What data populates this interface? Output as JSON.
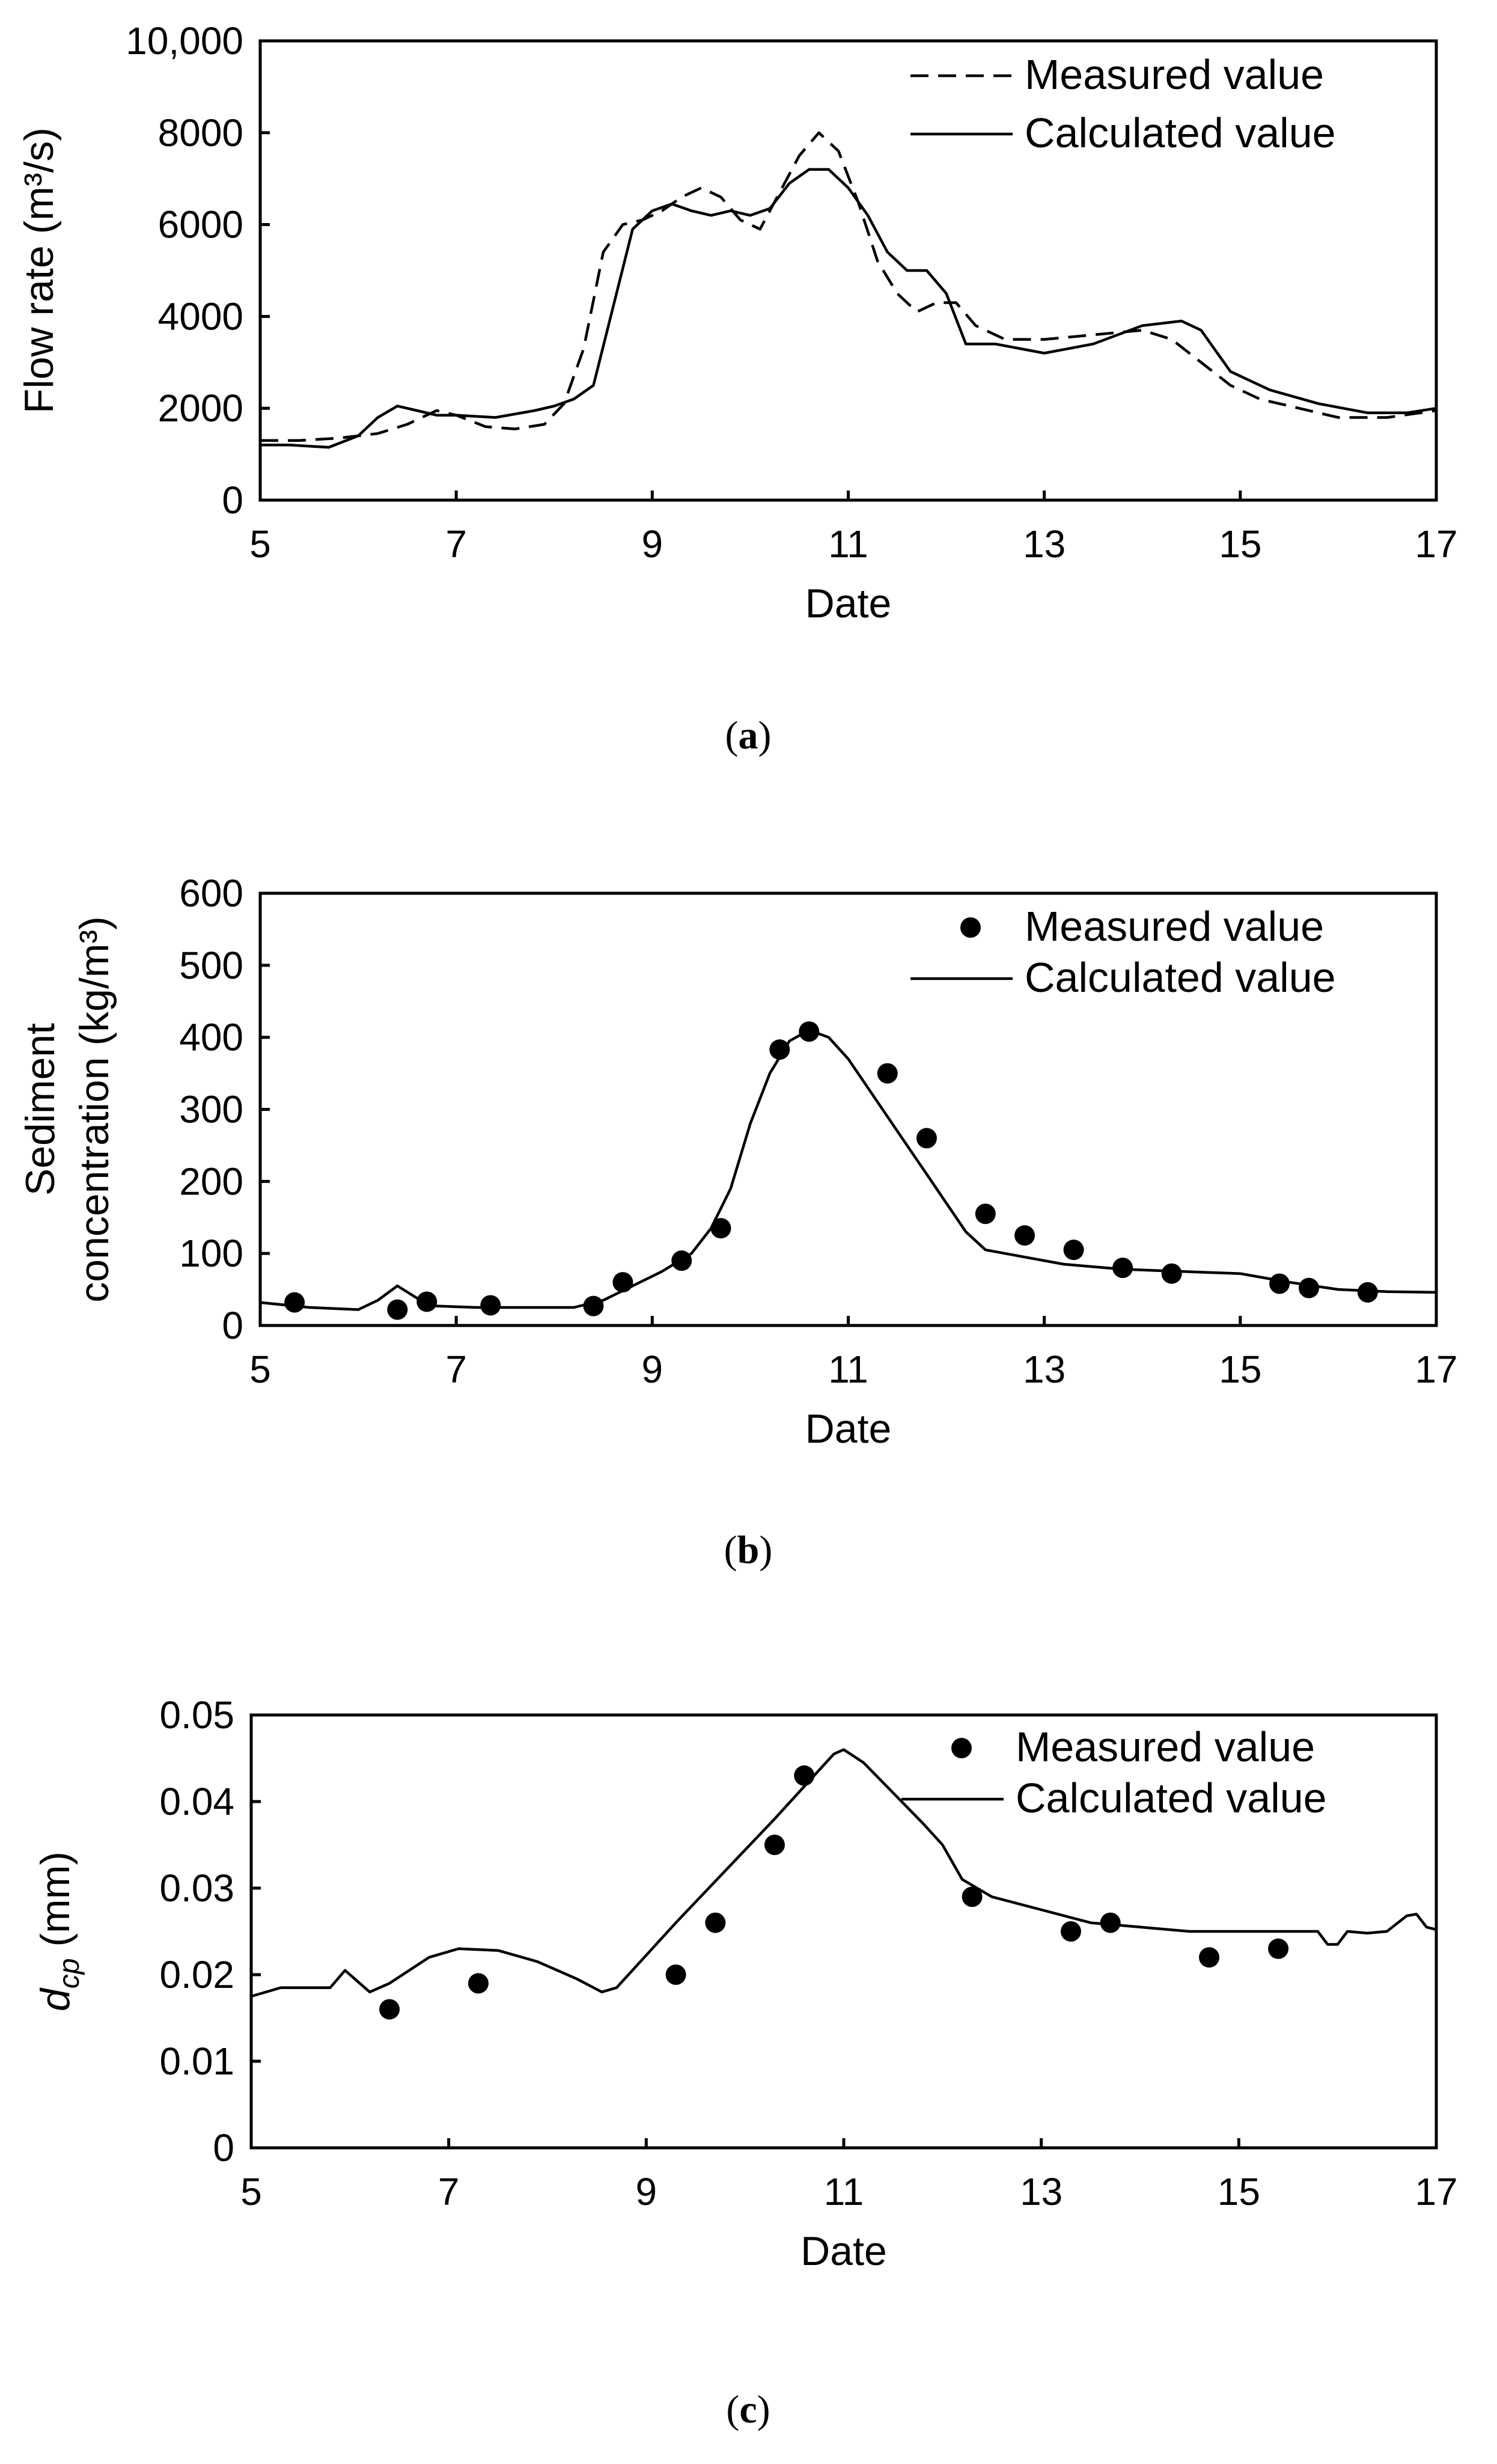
{
  "chart_data": [
    {
      "type": "line",
      "caption_letter": "a",
      "xlabel": "Date",
      "ylabel": "Flow rate (m³/s)",
      "xlim": [
        5,
        17
      ],
      "ylim": [
        0,
        10000
      ],
      "xticks": [
        5,
        7,
        9,
        11,
        13,
        15,
        17
      ],
      "xtick_labels": [
        "5",
        "7",
        "9",
        "11",
        "13",
        "15",
        "17"
      ],
      "yticks": [
        0,
        2000,
        4000,
        6000,
        8000,
        10000
      ],
      "ytick_labels": [
        "0",
        "2000",
        "4000",
        "6000",
        "8000",
        "10,000"
      ],
      "series": [
        {
          "name": "Measured value",
          "style": "dashed",
          "x": [
            5.0,
            5.4,
            5.8,
            6.2,
            6.5,
            6.8,
            7.0,
            7.3,
            7.6,
            7.9,
            8.1,
            8.3,
            8.5,
            8.7,
            8.9,
            9.1,
            9.3,
            9.5,
            9.7,
            9.9,
            10.1,
            10.3,
            10.5,
            10.7,
            10.9,
            11.1,
            11.3,
            11.5,
            11.7,
            11.9,
            12.1,
            12.3,
            12.6,
            13.0,
            13.5,
            14.0,
            14.3,
            14.6,
            14.9,
            15.2,
            15.6,
            16.0,
            16.5,
            17.0
          ],
          "y": [
            1300,
            1300,
            1350,
            1450,
            1650,
            1950,
            1850,
            1600,
            1550,
            1650,
            2100,
            3300,
            5400,
            6000,
            6100,
            6300,
            6600,
            6800,
            6600,
            6100,
            5900,
            6700,
            7500,
            8000,
            7600,
            6500,
            5200,
            4500,
            4100,
            4300,
            4300,
            3800,
            3500,
            3500,
            3600,
            3700,
            3500,
            3000,
            2500,
            2200,
            2000,
            1800,
            1800,
            1950
          ]
        },
        {
          "name": "Calculated value",
          "style": "solid",
          "x": [
            5.0,
            5.3,
            5.7,
            6.0,
            6.2,
            6.4,
            6.6,
            6.8,
            7.0,
            7.4,
            7.8,
            8.0,
            8.2,
            8.4,
            8.6,
            8.8,
            9.0,
            9.2,
            9.4,
            9.6,
            9.8,
            10.0,
            10.2,
            10.4,
            10.6,
            10.8,
            11.0,
            11.2,
            11.4,
            11.6,
            11.8,
            12.0,
            12.2,
            12.5,
            13.0,
            13.5,
            14.0,
            14.4,
            14.6,
            14.9,
            15.3,
            15.8,
            16.3,
            16.7,
            17.0
          ],
          "y": [
            1200,
            1200,
            1150,
            1400,
            1800,
            2050,
            1950,
            1850,
            1850,
            1800,
            1950,
            2050,
            2200,
            2500,
            4200,
            5900,
            6300,
            6450,
            6300,
            6200,
            6300,
            6200,
            6350,
            6900,
            7200,
            7200,
            6800,
            6200,
            5400,
            5000,
            5000,
            4500,
            3400,
            3400,
            3200,
            3400,
            3800,
            3900,
            3700,
            2800,
            2400,
            2100,
            1900,
            1900,
            2000
          ]
        }
      ]
    },
    {
      "type": "scatter",
      "caption_letter": "b",
      "xlabel": "Date",
      "ylabel_lines": [
        "Sediment",
        "concentration (kg/m³)"
      ],
      "xlim": [
        5,
        17
      ],
      "ylim": [
        0,
        600
      ],
      "xticks": [
        5,
        7,
        9,
        11,
        13,
        15,
        17
      ],
      "xtick_labels": [
        "5",
        "7",
        "9",
        "11",
        "13",
        "15",
        "17"
      ],
      "yticks": [
        0,
        100,
        200,
        300,
        400,
        500,
        600
      ],
      "ytick_labels": [
        "0",
        "100",
        "200",
        "300",
        "400",
        "500",
        "600"
      ],
      "series": [
        {
          "name": "Measured value",
          "style": "markers",
          "x": [
            5.35,
            6.4,
            6.7,
            7.35,
            8.4,
            8.7,
            9.3,
            9.7,
            10.3,
            10.6,
            11.4,
            11.8,
            12.4,
            12.8,
            13.3,
            13.8,
            14.3,
            15.4,
            15.7,
            16.3
          ],
          "y": [
            32,
            22,
            33,
            28,
            27,
            60,
            90,
            135,
            383,
            408,
            350,
            260,
            155,
            125,
            105,
            80,
            72,
            58,
            52,
            46
          ]
        },
        {
          "name": "Calculated value",
          "style": "solid",
          "x": [
            5.0,
            5.5,
            6.0,
            6.2,
            6.4,
            6.6,
            6.8,
            7.2,
            7.8,
            8.2,
            8.5,
            8.8,
            9.1,
            9.4,
            9.6,
            9.8,
            10.0,
            10.2,
            10.4,
            10.6,
            10.8,
            11.0,
            11.2,
            11.4,
            11.6,
            11.8,
            12.0,
            12.2,
            12.4,
            12.8,
            13.2,
            13.8,
            14.4,
            15.0,
            15.5,
            16.0,
            16.5,
            17.0
          ],
          "y": [
            32,
            25,
            22,
            35,
            55,
            38,
            27,
            25,
            25,
            25,
            35,
            55,
            75,
            100,
            135,
            190,
            280,
            350,
            395,
            410,
            400,
            370,
            330,
            290,
            250,
            210,
            170,
            130,
            105,
            95,
            85,
            78,
            75,
            72,
            60,
            50,
            47,
            46
          ]
        }
      ]
    },
    {
      "type": "scatter",
      "caption_letter": "c",
      "xlabel": "Date",
      "ylabel_main": "d",
      "ylabel_sub": "cp",
      "ylabel_unit": " (mm)",
      "xlim": [
        5,
        17
      ],
      "ylim": [
        0,
        0.05
      ],
      "xticks": [
        5,
        7,
        9,
        11,
        13,
        15,
        17
      ],
      "xtick_labels": [
        "5",
        "7",
        "9",
        "11",
        "13",
        "15",
        "17"
      ],
      "yticks": [
        0,
        0.01,
        0.02,
        0.03,
        0.04,
        0.05
      ],
      "ytick_labels": [
        "0",
        "0.01",
        "0.02",
        "0.03",
        "0.04",
        "0.05"
      ],
      "series": [
        {
          "name": "Measured value",
          "style": "markers",
          "x": [
            6.4,
            7.3,
            9.3,
            9.7,
            10.3,
            10.6,
            12.3,
            13.3,
            13.7,
            14.7,
            15.4
          ],
          "y": [
            0.016,
            0.019,
            0.02,
            0.026,
            0.035,
            0.043,
            0.029,
            0.025,
            0.026,
            0.022,
            0.023
          ]
        },
        {
          "name": "Calculated value",
          "style": "solid",
          "x": [
            5.0,
            5.3,
            5.8,
            5.95,
            6.05,
            6.2,
            6.4,
            6.8,
            7.1,
            7.5,
            7.9,
            8.3,
            8.55,
            8.7,
            8.9,
            9.3,
            9.8,
            10.3,
            10.7,
            10.9,
            11.0,
            11.2,
            11.5,
            11.8,
            12.0,
            12.2,
            12.5,
            13.0,
            13.5,
            14.0,
            14.5,
            15.0,
            15.5,
            15.8,
            15.9,
            16.0,
            16.1,
            16.3,
            16.5,
            16.7,
            16.8,
            16.9,
            17.0
          ],
          "y": [
            0.0175,
            0.0185,
            0.0185,
            0.0205,
            0.0195,
            0.018,
            0.019,
            0.022,
            0.023,
            0.0228,
            0.0215,
            0.0195,
            0.018,
            0.0185,
            0.021,
            0.026,
            0.032,
            0.038,
            0.043,
            0.0455,
            0.046,
            0.0445,
            0.041,
            0.0375,
            0.035,
            0.031,
            0.029,
            0.0275,
            0.026,
            0.0255,
            0.025,
            0.025,
            0.025,
            0.025,
            0.0235,
            0.0235,
            0.025,
            0.0248,
            0.025,
            0.0268,
            0.027,
            0.0255,
            0.0252
          ]
        }
      ]
    }
  ]
}
